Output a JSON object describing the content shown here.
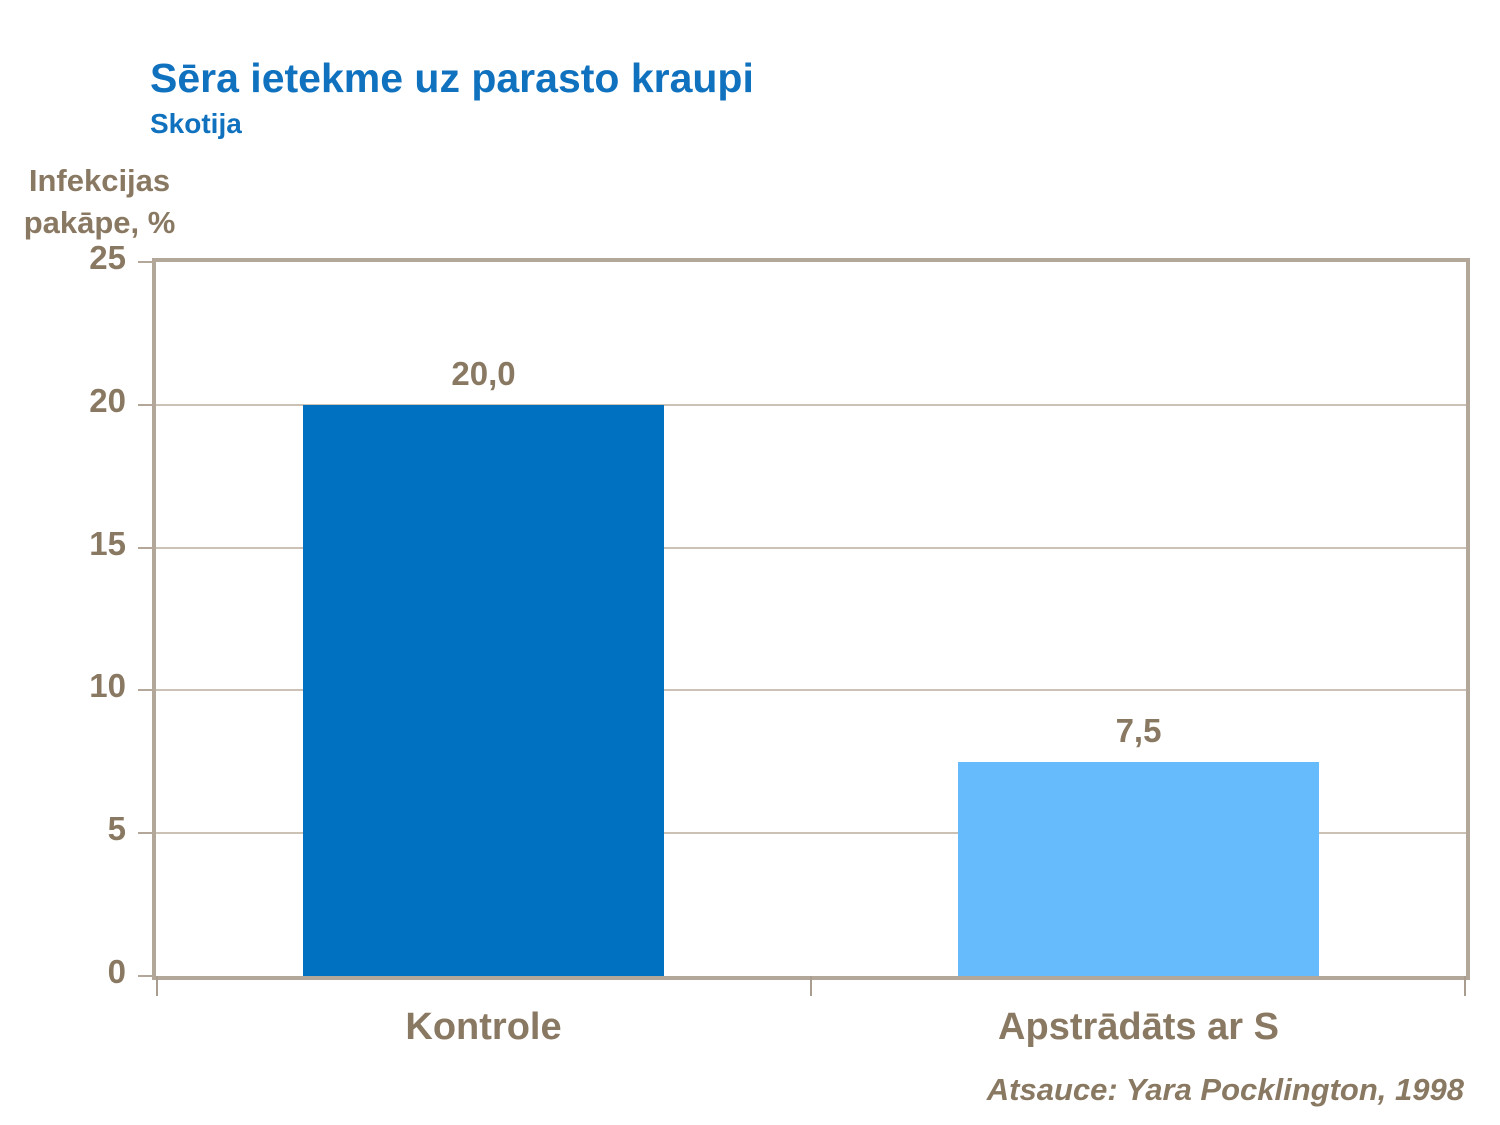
{
  "header": {
    "title": "Sēra ietekme uz parasto kraupi",
    "subtitle": "Skotija"
  },
  "y_axis": {
    "label_line1": "Infekcijas",
    "label_line2": "pakāpe, %"
  },
  "footer": {
    "reference": "Atsauce: Yara Pocklington, 1998"
  },
  "colors": {
    "title_blue": "#1072be",
    "text_brown": "#8a7962",
    "frame": "#b3a79a",
    "gridline": "#cbc2b5",
    "bar_control": "#0070c0",
    "bar_treated": "#66bbfc"
  },
  "chart_data": {
    "type": "bar",
    "title": "Sēra ietekme uz parasto kraupi",
    "subtitle": "Skotija",
    "xlabel": "",
    "ylabel": "Infekcijas pakāpe, %",
    "categories": [
      "Kontrole",
      "Apstrādāts ar S"
    ],
    "values": [
      20.0,
      7.5
    ],
    "value_labels": [
      "20,0",
      "7,5"
    ],
    "bar_colors": [
      "#0070c0",
      "#66bbfc"
    ],
    "ylim": [
      0,
      25
    ],
    "yticks": [
      0,
      5,
      10,
      15,
      20,
      25
    ],
    "grid": true,
    "legend_position": "none",
    "annotation": "Atsauce: Yara Pocklington, 1998"
  }
}
